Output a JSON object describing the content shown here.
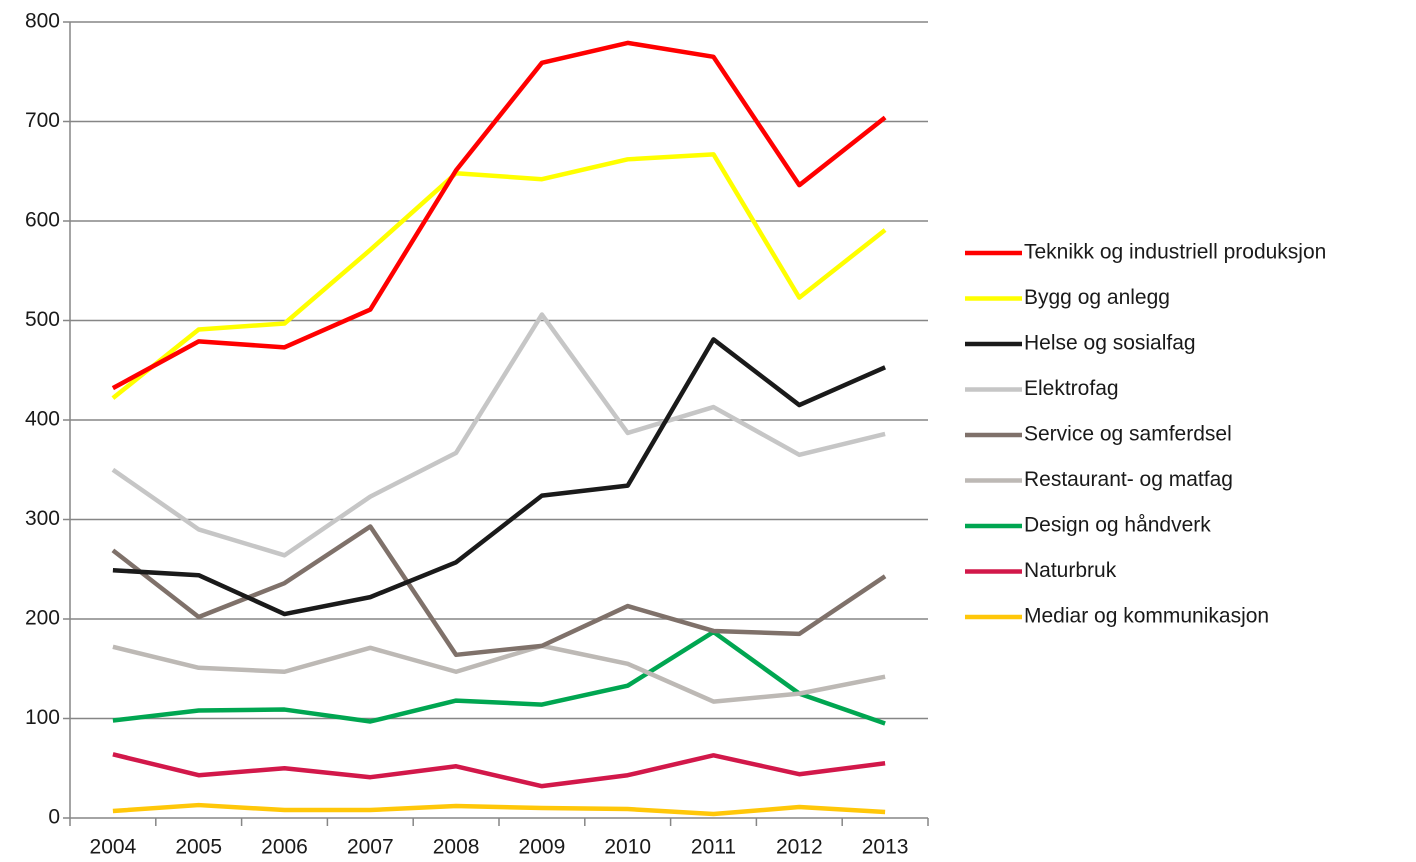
{
  "chart_data": {
    "type": "line",
    "categories": [
      "2004",
      "2005",
      "2006",
      "2007",
      "2008",
      "2009",
      "2010",
      "2011",
      "2012",
      "2013"
    ],
    "series": [
      {
        "name": "Teknikk og industriell produksjon",
        "color": "#ff0000",
        "values": [
          432,
          479,
          473,
          511,
          651,
          759,
          779,
          765,
          636,
          704
        ]
      },
      {
        "name": "Bygg og anlegg",
        "color": "#ffff00",
        "values": [
          422,
          491,
          497,
          571,
          648,
          642,
          662,
          667,
          523,
          591
        ]
      },
      {
        "name": "Helse og sosialfag",
        "color": "#1a1a1a",
        "values": [
          249,
          244,
          205,
          222,
          257,
          324,
          334,
          481,
          415,
          453
        ]
      },
      {
        "name": "Elektrofag",
        "color": "#c6c6c6",
        "values": [
          350,
          290,
          264,
          323,
          367,
          506,
          387,
          413,
          365,
          386
        ]
      },
      {
        "name": "Service og samferdsel",
        "color": "#7f716a",
        "values": [
          269,
          202,
          236,
          293,
          164,
          173,
          213,
          188,
          185,
          243
        ]
      },
      {
        "name": "Restaurant- og matfag",
        "color": "#bdb9b5",
        "values": [
          172,
          151,
          147,
          171,
          147,
          173,
          155,
          117,
          125,
          142
        ]
      },
      {
        "name": "Design og håndverk",
        "color": "#00a651",
        "values": [
          98,
          108,
          109,
          97,
          118,
          114,
          133,
          187,
          125,
          95
        ]
      },
      {
        "name": "Naturbruk",
        "color": "#d2184a",
        "values": [
          64,
          43,
          50,
          41,
          52,
          32,
          43,
          63,
          44,
          55
        ]
      },
      {
        "name": "Mediar og kommunikasjon",
        "color": "#ffc709",
        "values": [
          7,
          13,
          8,
          8,
          12,
          10,
          9,
          4,
          11,
          6
        ]
      }
    ],
    "ylim": [
      0,
      800
    ],
    "yticks": [
      0,
      100,
      200,
      300,
      400,
      500,
      600,
      700,
      800
    ],
    "grid": true,
    "legend": "right"
  }
}
